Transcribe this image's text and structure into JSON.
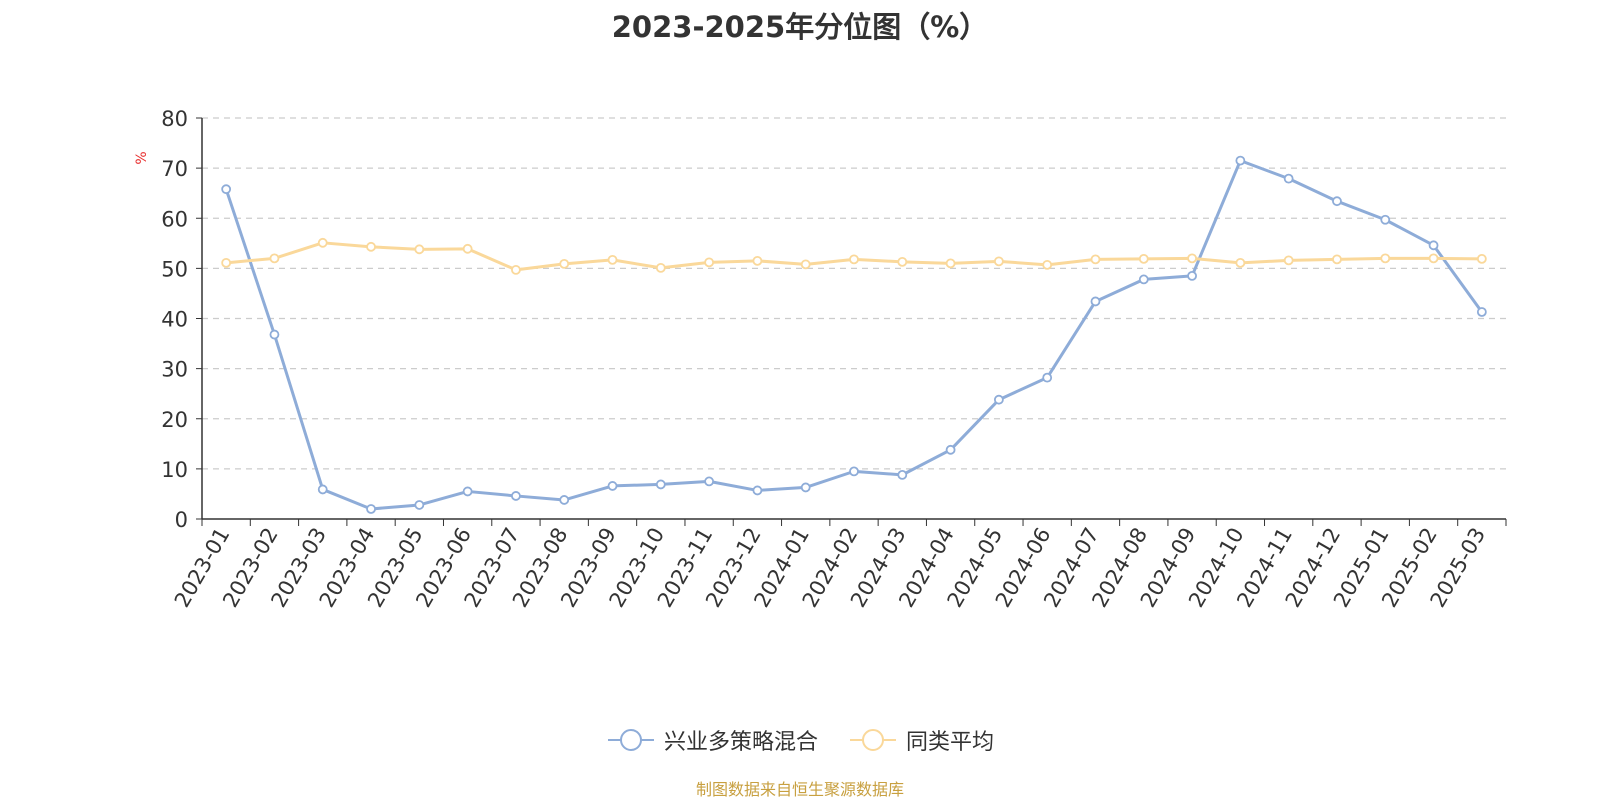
{
  "chart_data": {
    "type": "line",
    "title": "2023-2025年分位图（%）",
    "ylabel": "%",
    "xlabel": "",
    "ylim": [
      0,
      80
    ],
    "yticks": [
      0,
      10,
      20,
      30,
      40,
      50,
      60,
      70,
      80
    ],
    "grid": true,
    "legend_position": "bottom",
    "categories": [
      "2023-01",
      "2023-02",
      "2023-03",
      "2023-04",
      "2023-05",
      "2023-06",
      "2023-07",
      "2023-08",
      "2023-09",
      "2023-10",
      "2023-11",
      "2023-12",
      "2024-01",
      "2024-02",
      "2024-03",
      "2024-04",
      "2024-05",
      "2024-06",
      "2024-07",
      "2024-08",
      "2024-09",
      "2024-10",
      "2024-11",
      "2024-12",
      "2025-01",
      "2025-02",
      "2025-03"
    ],
    "series": [
      {
        "name": "兴业多策略混合",
        "color": "#8eacd8",
        "values": [
          65.8,
          36.8,
          5.9,
          2.0,
          2.8,
          5.5,
          4.6,
          3.8,
          6.6,
          6.9,
          7.5,
          5.7,
          6.3,
          9.5,
          8.8,
          13.8,
          23.8,
          28.2,
          43.4,
          47.8,
          48.5,
          71.5,
          67.9,
          63.4,
          59.7,
          54.6,
          41.3
        ]
      },
      {
        "name": "同类平均",
        "color": "#fad89a",
        "values": [
          51.1,
          52.0,
          55.1,
          54.3,
          53.8,
          53.9,
          49.7,
          50.9,
          51.7,
          50.1,
          51.2,
          51.5,
          50.8,
          51.8,
          51.3,
          51.0,
          51.4,
          50.7,
          51.8,
          51.9,
          52.0,
          51.1,
          51.6,
          51.8,
          52.0,
          52.0,
          51.9
        ]
      }
    ]
  },
  "footer": {
    "source": "制图数据来自恒生聚源数据库"
  }
}
